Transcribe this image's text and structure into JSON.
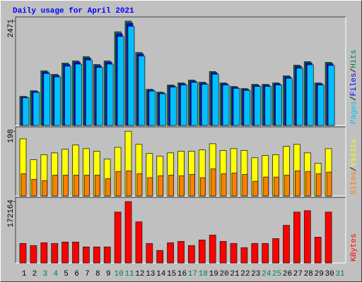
{
  "chart_data": [
    {
      "type": "bar",
      "title": "Daily usage for April 2021",
      "ylim": [
        0,
        2520
      ],
      "yticks": [
        2471
      ],
      "legend_separator": "/",
      "series": [
        {
          "name": "Hits",
          "color": "#008040",
          "values": [
            689,
            823,
            1294,
            1210,
            1478,
            1529,
            1630,
            1445,
            1529,
            2218,
            2471,
            1730,
            857,
            790,
            958,
            1008,
            1075,
            1025,
            1277,
            1008,
            924,
            874,
            974,
            974,
            1008,
            1176,
            1428,
            1512,
            1008,
            1495,
            null
          ]
        },
        {
          "name": "Files",
          "color": "#0000ff",
          "values": [
            675,
            806,
            1268,
            1186,
            1448,
            1498,
            1597,
            1416,
            1498,
            2174,
            2421,
            1695,
            840,
            774,
            939,
            988,
            1053,
            1004,
            1251,
            988,
            905,
            857,
            954,
            954,
            988,
            1152,
            1399,
            1482,
            988,
            1465,
            null
          ]
        },
        {
          "name": "Pages",
          "color": "#00c0ff",
          "values": [
            655,
            782,
            1229,
            1150,
            1404,
            1453,
            1549,
            1373,
            1453,
            2107,
            2347,
            1644,
            814,
            751,
            910,
            958,
            1021,
            974,
            1213,
            958,
            878,
            830,
            925,
            925,
            958,
            1117,
            1357,
            1436,
            958,
            1420,
            null
          ]
        }
      ]
    },
    {
      "type": "bar",
      "ylim": [
        0,
        205
      ],
      "yticks": [
        198
      ],
      "legend_separator": "/",
      "series": [
        {
          "name": "Visits",
          "color": "#ffff00",
          "values": [
            175,
            111,
            126,
            132,
            143,
            156,
            145,
            137,
            113,
            149,
            198,
            158,
            130,
            122,
            132,
            137,
            137,
            141,
            160,
            139,
            145,
            139,
            117,
            124,
            126,
            152,
            158,
            132,
            100,
            145,
            null
          ]
        },
        {
          "name": "Sites",
          "color": "#ff8000",
          "values": [
            68,
            51,
            47,
            64,
            64,
            64,
            64,
            64,
            53,
            75,
            77,
            68,
            56,
            62,
            64,
            62,
            66,
            56,
            83,
            68,
            70,
            66,
            45,
            58,
            58,
            64,
            77,
            75,
            68,
            73,
            null
          ]
        }
      ]
    },
    {
      "type": "bar",
      "ylim": [
        0,
        178000
      ],
      "yticks": [
        172164
      ],
      "categories": [
        "1",
        "2",
        "3",
        "4",
        "5",
        "6",
        "7",
        "8",
        "9",
        "10",
        "11",
        "12",
        "13",
        "14",
        "15",
        "16",
        "17",
        "18",
        "19",
        "20",
        "21",
        "22",
        "23",
        "24",
        "25",
        "26",
        "27",
        "28",
        "29",
        "30",
        "31"
      ],
      "category_colors": [
        "#000000",
        "#000000",
        "#008040",
        "#008040",
        "#000000",
        "#000000",
        "#000000",
        "#000000",
        "#000000",
        "#008040",
        "#008040",
        "#000000",
        "#000000",
        "#000000",
        "#000000",
        "#000000",
        "#008040",
        "#008040",
        "#000000",
        "#000000",
        "#000000",
        "#000000",
        "#000000",
        "#008040",
        "#008040",
        "#000000",
        "#000000",
        "#000000",
        "#000000",
        "#000000",
        "#008040"
      ],
      "series": [
        {
          "name": "KBytes",
          "color": "#ff0000",
          "values": [
            54768,
            48900,
            56724,
            54768,
            58680,
            58680,
            44988,
            44988,
            44988,
            142788,
            172164,
            115404,
            54768,
            35208,
            56724,
            60636,
            48900,
            64548,
            78240,
            60636,
            54768,
            43032,
            54768,
            54768,
            68460,
            105624,
            142788,
            146700,
            72372,
            142788,
            null
          ]
        }
      ]
    }
  ]
}
